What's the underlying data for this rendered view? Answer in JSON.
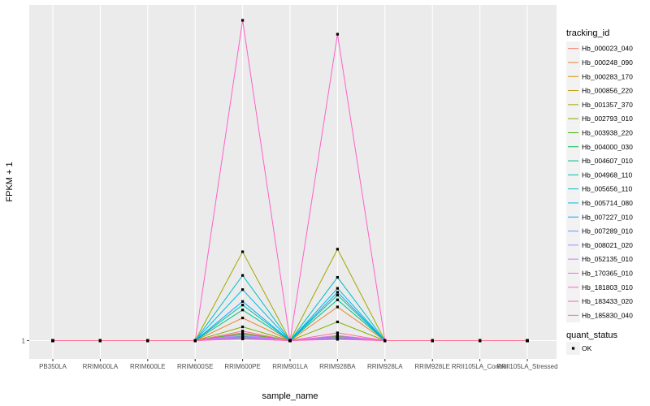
{
  "chart_data": {
    "type": "line",
    "xlabel": "sample_name",
    "ylabel": "FPKM + 1",
    "y_scale": "log",
    "y_ticks": [
      1
    ],
    "y_tick_labels": [
      "1"
    ],
    "grid": true,
    "legend_placement": "right",
    "categories": [
      "PB350LA",
      "RRIM600LA",
      "RRIM600LE",
      "RRIM600SE",
      "RRIM600PE",
      "RRIM901LA",
      "RRIM928BA",
      "RRIM928LA",
      "RRIM928LE",
      "RRII105LA_Control",
      "RRII105LA_Stressed"
    ],
    "legend_title": "tracking_id",
    "series": [
      {
        "name": "Hb_000023_040",
        "color": "#F8766D",
        "values": [
          1,
          1,
          1,
          1,
          1.2,
          1,
          1.12,
          1,
          1,
          1,
          1
        ]
      },
      {
        "name": "Hb_000248_090",
        "color": "#EA8331",
        "values": [
          1,
          1,
          1,
          1,
          1.7,
          1,
          2.2,
          1,
          1,
          1,
          1
        ]
      },
      {
        "name": "Hb_000283_170",
        "color": "#D89000",
        "values": [
          1,
          1,
          1,
          1,
          1.08,
          1,
          1.06,
          1,
          1,
          1,
          1
        ]
      },
      {
        "name": "Hb_000856_220",
        "color": "#C09B00",
        "values": [
          1,
          1,
          1,
          1,
          1.05,
          1,
          1.04,
          1,
          1,
          1,
          1
        ]
      },
      {
        "name": "Hb_001357_370",
        "color": "#A3A500",
        "values": [
          1,
          1,
          1,
          1,
          8,
          1,
          8.5,
          1,
          1,
          1,
          1
        ]
      },
      {
        "name": "Hb_002793_010",
        "color": "#7CAE00",
        "values": [
          1,
          1,
          1,
          1,
          1.38,
          1,
          1.55,
          1,
          1,
          1,
          1
        ]
      },
      {
        "name": "Hb_003938_220",
        "color": "#39B600",
        "values": [
          1,
          1,
          1,
          1,
          1.18,
          1,
          1.1,
          1,
          1,
          1,
          1
        ]
      },
      {
        "name": "Hb_004000_030",
        "color": "#00BB4E",
        "values": [
          1,
          1,
          1,
          1,
          1.1,
          1,
          1.07,
          1,
          1,
          1,
          1
        ]
      },
      {
        "name": "Hb_004607_010",
        "color": "#00BF7D",
        "values": [
          1,
          1,
          1,
          1,
          2.05,
          1,
          2.6,
          1,
          1,
          1,
          1
        ]
      },
      {
        "name": "Hb_004968_110",
        "color": "#00C1A3",
        "values": [
          1,
          1,
          1,
          1,
          2.3,
          1,
          2.9,
          1,
          1,
          1,
          1
        ]
      },
      {
        "name": "Hb_005656_110",
        "color": "#00BFC4",
        "values": [
          1,
          1,
          1,
          1,
          4.6,
          1,
          4.4,
          1,
          1,
          1,
          1
        ]
      },
      {
        "name": "Hb_005714_080",
        "color": "#00B8E7",
        "values": [
          1,
          1,
          1,
          1,
          3.3,
          1,
          3.4,
          1,
          1,
          1,
          1
        ]
      },
      {
        "name": "Hb_007227_010",
        "color": "#00A9FF",
        "values": [
          1,
          1,
          1,
          1,
          2.5,
          1,
          3.1,
          1,
          1,
          1,
          1
        ]
      },
      {
        "name": "Hb_007289_010",
        "color": "#619CFF",
        "values": [
          1,
          1,
          1,
          1,
          1.07,
          1,
          1.05,
          1,
          1,
          1,
          1
        ]
      },
      {
        "name": "Hb_008021_020",
        "color": "#9590FF",
        "values": [
          1,
          1,
          1,
          1,
          1.12,
          1,
          1.09,
          1,
          1,
          1,
          1
        ]
      },
      {
        "name": "Hb_052135_010",
        "color": "#C77CFF",
        "values": [
          1,
          1,
          1,
          1,
          1.15,
          1,
          1.13,
          1,
          1,
          1,
          1
        ]
      },
      {
        "name": "Hb_170365_010",
        "color": "#E76BF3",
        "values": [
          1,
          1,
          1,
          1,
          1.09,
          1,
          1.08,
          1,
          1,
          1,
          1
        ]
      },
      {
        "name": "Hb_181803_010",
        "color": "#FF61C9",
        "values": [
          1,
          1,
          1,
          1,
          1800,
          1,
          1300,
          1,
          1,
          1,
          1
        ]
      },
      {
        "name": "Hb_183433_020",
        "color": "#FF62BC",
        "values": [
          1,
          1,
          1,
          1,
          1.04,
          1,
          1.03,
          1,
          1,
          1,
          1
        ]
      },
      {
        "name": "Hb_185830_040",
        "color": "#FF6C91",
        "values": [
          1,
          1,
          1,
          1,
          1.25,
          1,
          1.2,
          1,
          1,
          1,
          1
        ]
      }
    ],
    "point_legend": {
      "title": "quant_status",
      "label": "OK",
      "color": "#000000"
    }
  }
}
